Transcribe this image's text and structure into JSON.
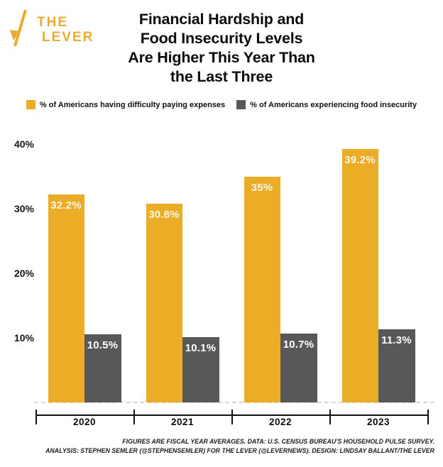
{
  "logo": {
    "the": "THE",
    "lever": "LEVER",
    "color": "#E9AC33"
  },
  "title": {
    "line1": "Financial Hardship and",
    "line2": "Food Insecurity Levels",
    "line3": "Are Higher This Year Than",
    "line4": "the Last Three"
  },
  "legend": {
    "items": [
      {
        "label": "% of Americans having difficulty paying expenses",
        "color": "#EBAC26"
      },
      {
        "label": "% of Americans experiencing food insecurity",
        "color": "#58585A"
      }
    ]
  },
  "chart_data": {
    "type": "bar",
    "categories": [
      "2020",
      "2021",
      "2022",
      "2023"
    ],
    "series": [
      {
        "name": "% of Americans having difficulty paying expenses",
        "color": "#EBAC26",
        "label_color": "#FBF5E6",
        "values": [
          32.2,
          30.8,
          35,
          39.2
        ],
        "labels": [
          "32.2%",
          "30.8%",
          "35%",
          "39.2%"
        ]
      },
      {
        "name": "% of Americans experiencing food insecurity",
        "color": "#58585A",
        "label_color": "#FFFFFF",
        "values": [
          10.5,
          10.1,
          10.7,
          11.3
        ],
        "labels": [
          "10.5%",
          "10.1%",
          "10.7%",
          "11.3%"
        ]
      }
    ],
    "y_ticks": [
      {
        "label": "40%",
        "value": 40
      },
      {
        "label": "30%",
        "value": 30
      },
      {
        "label": "20%",
        "value": 20
      },
      {
        "label": "10%",
        "value": 10
      }
    ],
    "ylim": [
      0,
      42
    ],
    "grid": "dashed zero baseline only",
    "legend_position": "top",
    "value_labels": "inside bar top, centered"
  },
  "footer": {
    "line1": "FIGURES ARE FISCAL YEAR AVERAGES. DATA: U.S. CENSUS BUREAU'S HOUSEHOLD PULSE SURVEY.",
    "line2": "ANALYSIS: STEPHEN SEMLER (@STEPHENSEMLER) FOR THE LEVER (@LEVERNEWS). DESIGN: LINDSAY BALLANT/THE LEVER"
  }
}
